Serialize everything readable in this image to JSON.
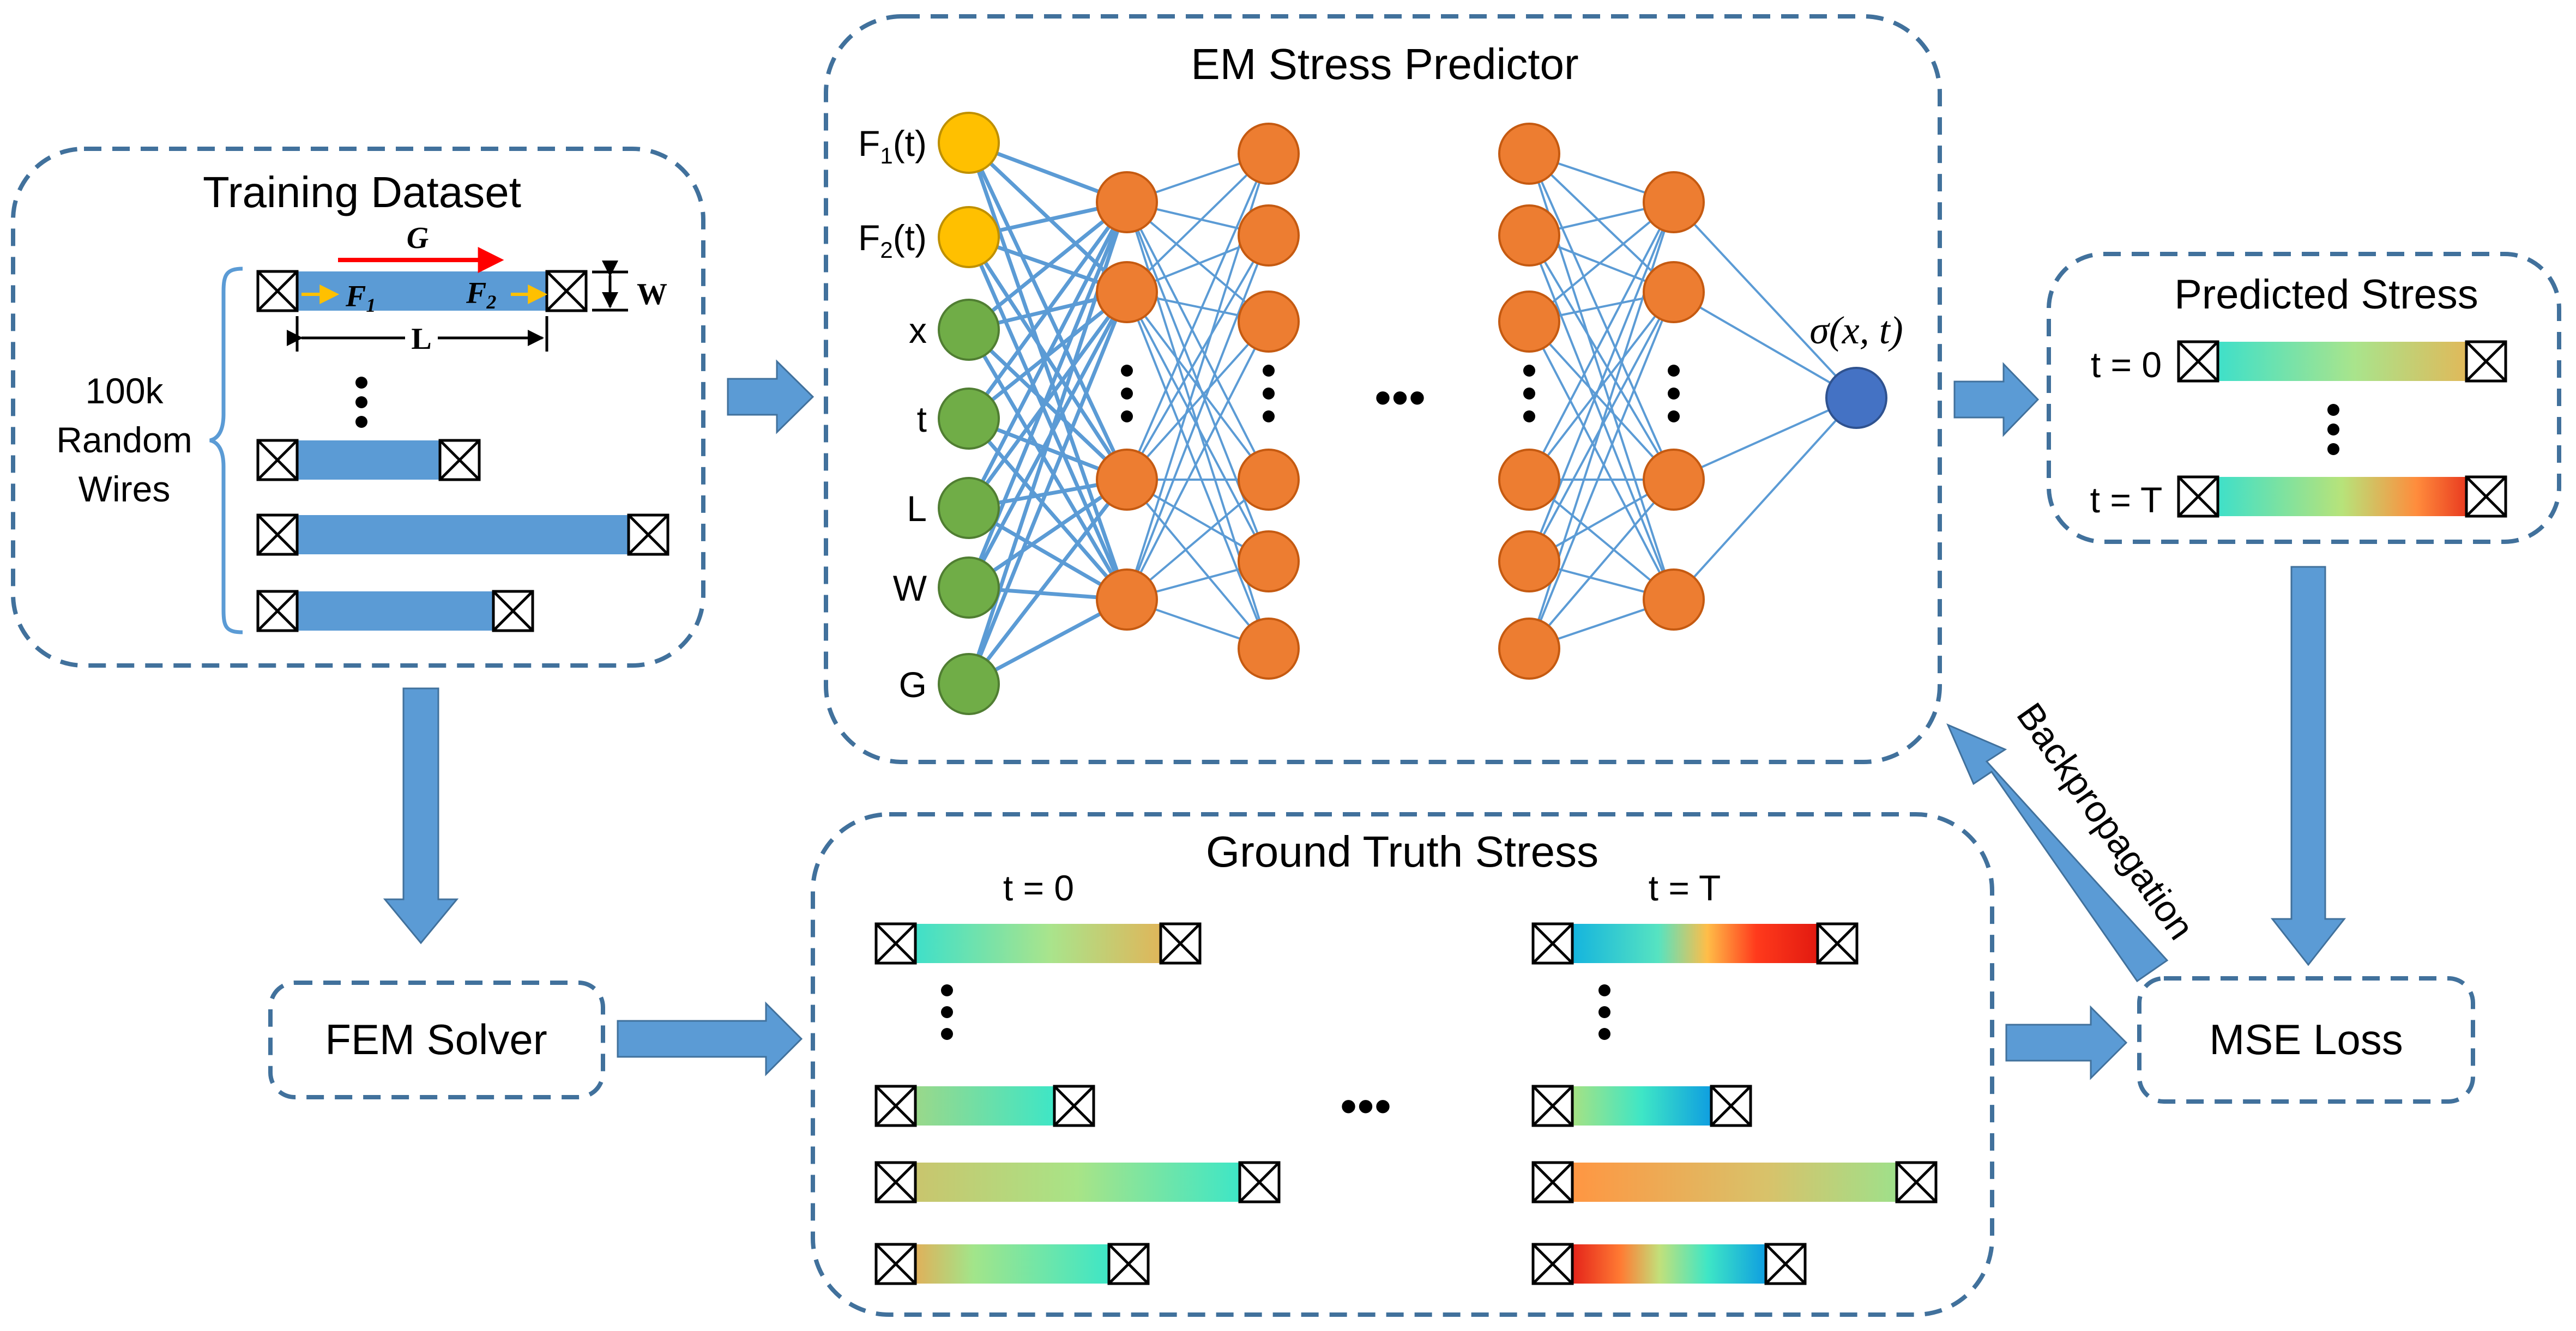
{
  "colors": {
    "panel_border": "#41719c",
    "arrow_fill": "#5b9bd5",
    "wire_blue": "#5b9bd5",
    "input_yellow": "#ffc000",
    "input_green": "#70ad47",
    "hidden_orange": "#ed7d31",
    "output_blue": "#4472c4",
    "connection_blue": "#5b9bd5",
    "current_red": "#ff0000",
    "flux_orange": "#ffc000"
  },
  "training": {
    "title": "Training Dataset",
    "side_label": [
      "100k",
      "Random",
      "Wires"
    ],
    "current_label": "G",
    "flux1_label": "F",
    "flux1_sub": "1",
    "flux2_label": "F",
    "flux2_sub": "2",
    "width_label": "W",
    "length_label": "L"
  },
  "fem": {
    "label": "FEM Solver"
  },
  "predictor": {
    "title": "EM Stress Predictor",
    "inputs": [
      {
        "label": "F",
        "sub": "1",
        "suffix": "(t)",
        "color": "yellow"
      },
      {
        "label": "F",
        "sub": "2",
        "suffix": "(t)",
        "color": "yellow"
      },
      {
        "label": "x",
        "color": "green"
      },
      {
        "label": "t",
        "color": "green"
      },
      {
        "label": "L",
        "color": "green"
      },
      {
        "label": "W",
        "color": "green"
      },
      {
        "label": "G",
        "color": "green"
      }
    ],
    "output_label": "σ(x, t)",
    "ellipsis": "•••"
  },
  "predicted": {
    "title": "Predicted Stress",
    "rows": [
      {
        "label": "t = 0",
        "gradient": "pred0"
      },
      {
        "label": "t = T",
        "gradient": "predT"
      }
    ]
  },
  "ground_truth": {
    "title": "Ground Truth Stress",
    "col0_label": "t = 0",
    "colT_label": "t = T",
    "ellipsis": "•••"
  },
  "mse": {
    "label": "MSE Loss"
  },
  "backprop": {
    "label": "Backpropagation"
  }
}
